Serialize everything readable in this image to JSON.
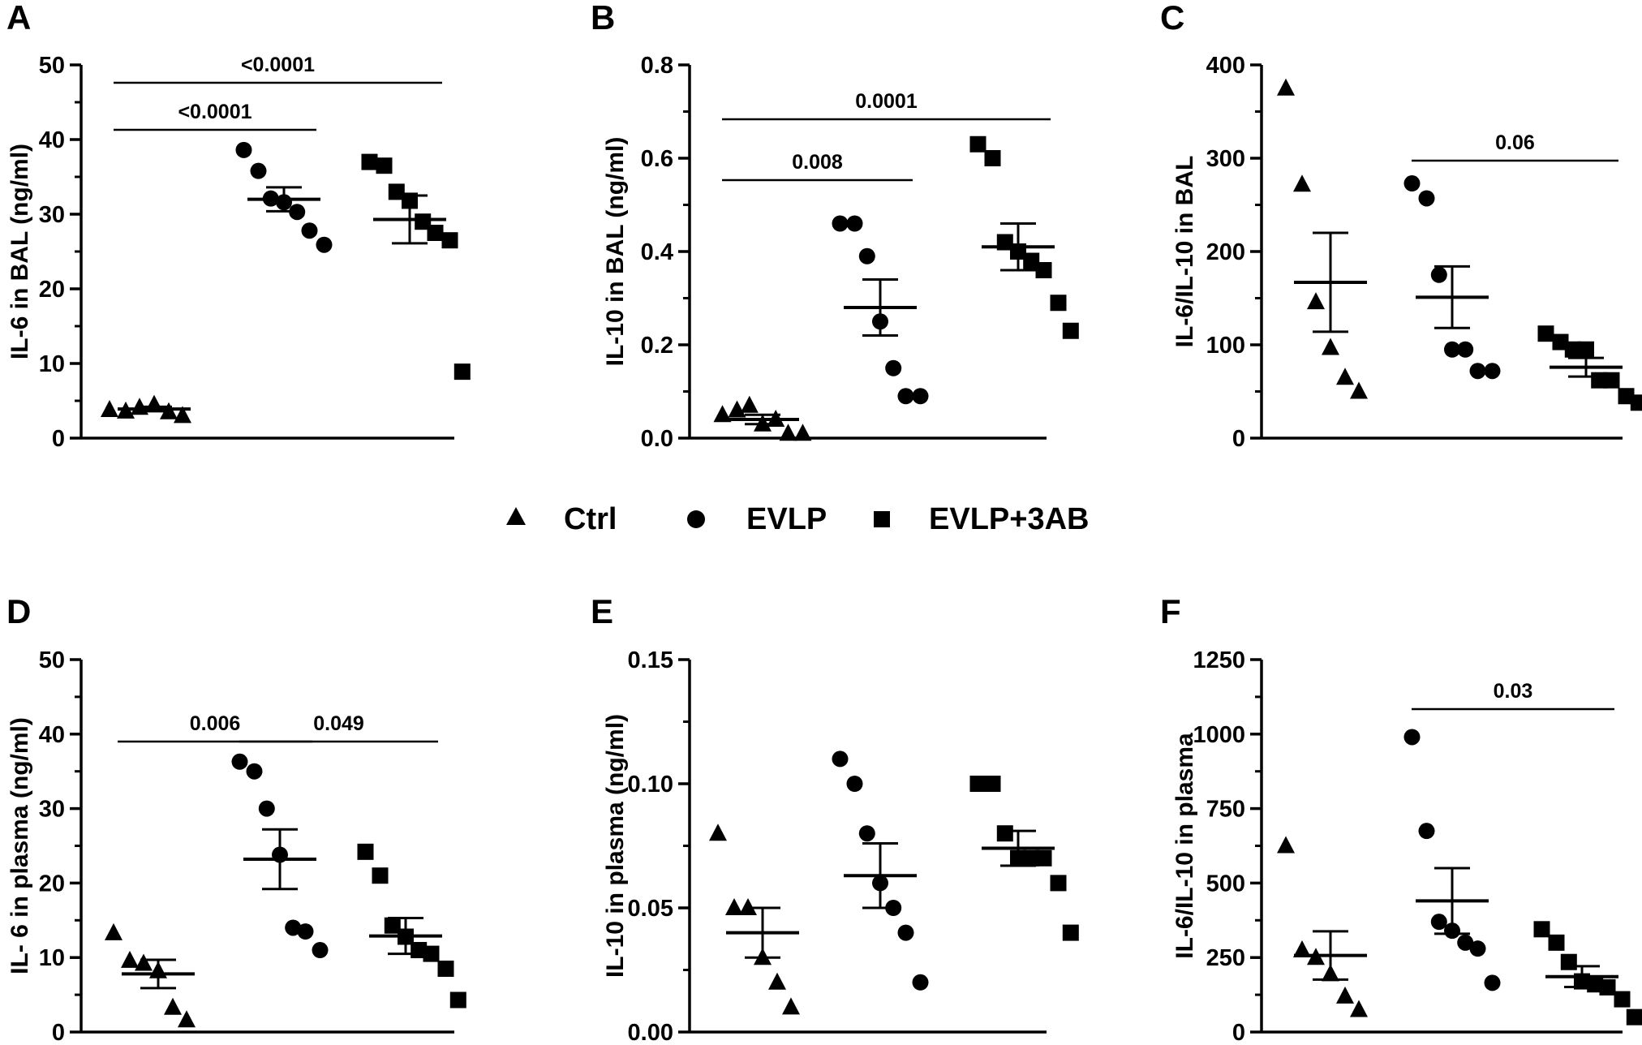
{
  "legend": [
    {
      "label": "Ctrl",
      "marker": "triangle"
    },
    {
      "label": "EVLP",
      "marker": "circle"
    },
    {
      "label": "EVLP+3AB",
      "marker": "square"
    }
  ],
  "chart_data": [
    {
      "panel": "A",
      "type": "scatter",
      "ylabel": "IL-6 in BAL (ng/ml)",
      "ylim": [
        0,
        50
      ],
      "yticks": [
        "0",
        "10",
        "20",
        "30",
        "40",
        "50"
      ],
      "groups": [
        {
          "name": "Ctrl",
          "marker": "triangle",
          "values": [
            3.8,
            3.6,
            4.1,
            4.5,
            3.5,
            3.0
          ],
          "mean": 3.9,
          "sem": 0.3
        },
        {
          "name": "EVLP",
          "marker": "circle",
          "values": [
            38.6,
            35.8,
            32.1,
            31.6,
            30.3,
            27.8,
            25.9
          ],
          "mean": 32.0,
          "sem": 1.6
        },
        {
          "name": "EVLP+3AB",
          "marker": "square",
          "values": [
            37.0,
            36.5,
            33.0,
            31.8,
            29.0,
            27.5,
            26.5,
            8.9
          ],
          "mean": 29.3,
          "sem": 3.2
        }
      ],
      "comparisons": [
        {
          "from": 0,
          "to": 1,
          "label": "<0.0001"
        },
        {
          "from": 0,
          "to": 2,
          "label": "<0.0001"
        }
      ]
    },
    {
      "panel": "B",
      "type": "scatter",
      "ylabel": "IL-10 in BAL (ng/ml)",
      "ylim": [
        0,
        0.8
      ],
      "yticks": [
        "0.0",
        "0.2",
        "0.4",
        "0.6",
        "0.8"
      ],
      "groups": [
        {
          "name": "Ctrl",
          "marker": "triangle",
          "values": [
            0.05,
            0.06,
            0.07,
            0.03,
            0.04,
            0.01,
            0.01
          ],
          "mean": 0.04,
          "sem": 0.01
        },
        {
          "name": "EVLP",
          "marker": "circle",
          "values": [
            0.46,
            0.46,
            0.39,
            0.25,
            0.15,
            0.09,
            0.09
          ],
          "mean": 0.28,
          "sem": 0.06
        },
        {
          "name": "EVLP+3AB",
          "marker": "square",
          "values": [
            0.63,
            0.6,
            0.42,
            0.4,
            0.38,
            0.36,
            0.29,
            0.23
          ],
          "mean": 0.41,
          "sem": 0.05
        }
      ],
      "comparisons": [
        {
          "from": 0,
          "to": 1,
          "label": "0.008"
        },
        {
          "from": 0,
          "to": 2,
          "label": "0.0001"
        }
      ]
    },
    {
      "panel": "C",
      "type": "scatter",
      "ylabel": "IL-6/IL-10 in BAL",
      "ylim": [
        0,
        400
      ],
      "yticks": [
        "0",
        "100",
        "200",
        "300",
        "400"
      ],
      "groups": [
        {
          "name": "Ctrl",
          "marker": "triangle",
          "values": [
            375,
            272,
            146,
            97,
            65,
            50
          ],
          "mean": 167,
          "sem": 53
        },
        {
          "name": "EVLP",
          "marker": "circle",
          "values": [
            273,
            257,
            175,
            95,
            95,
            72,
            72
          ],
          "mean": 151,
          "sem": 33
        },
        {
          "name": "EVLP+3AB",
          "marker": "square",
          "values": [
            112,
            103,
            95,
            95,
            62,
            62,
            45,
            38
          ],
          "mean": 76,
          "sem": 10
        }
      ],
      "comparisons": [
        {
          "from": 1,
          "to": 2,
          "label": "0.06"
        }
      ]
    },
    {
      "panel": "D",
      "type": "scatter",
      "ylabel": "IL- 6 in plasma (ng/ml)",
      "ylim": [
        0,
        50
      ],
      "yticks": [
        "0",
        "10",
        "20",
        "30",
        "40",
        "50"
      ],
      "groups": [
        {
          "name": "Ctrl",
          "marker": "triangle",
          "values": [
            13.3,
            9.6,
            9.2,
            8.2,
            3.3,
            1.6
          ],
          "mean": 7.8,
          "sem": 1.9
        },
        {
          "name": "EVLP",
          "marker": "circle",
          "values": [
            36.3,
            35.0,
            30.0,
            23.8,
            14.0,
            13.5,
            11.0
          ],
          "mean": 23.2,
          "sem": 4.0
        },
        {
          "name": "EVLP+3AB",
          "marker": "square",
          "values": [
            24.2,
            21.0,
            14.3,
            12.8,
            11.0,
            10.5,
            8.5,
            4.3
          ],
          "mean": 12.9,
          "sem": 2.4
        }
      ],
      "comparisons": [
        {
          "from": 0,
          "to": 1,
          "label": "0.006"
        },
        {
          "from": 1,
          "to": 2,
          "label": "0.049"
        }
      ]
    },
    {
      "panel": "E",
      "type": "scatter",
      "ylabel": "IL-10 in plasma (ng/ml)",
      "ylim": [
        0,
        0.15
      ],
      "yticks": [
        "0.00",
        "0.05",
        "0.10",
        "0.15"
      ],
      "groups": [
        {
          "name": "Ctrl",
          "marker": "triangle",
          "values": [
            0.08,
            0.05,
            0.05,
            0.03,
            0.02,
            0.01
          ],
          "mean": 0.04,
          "sem": 0.01
        },
        {
          "name": "EVLP",
          "marker": "circle",
          "values": [
            0.11,
            0.1,
            0.08,
            0.06,
            0.05,
            0.04,
            0.02
          ],
          "mean": 0.063,
          "sem": 0.013
        },
        {
          "name": "EVLP+3AB",
          "marker": "square",
          "values": [
            0.1,
            0.1,
            0.08,
            0.07,
            0.07,
            0.07,
            0.06,
            0.04
          ],
          "mean": 0.074,
          "sem": 0.007
        }
      ],
      "comparisons": []
    },
    {
      "panel": "F",
      "type": "scatter",
      "ylabel": "IL-6/IL-10 in plasma",
      "ylim": [
        0,
        1250
      ],
      "yticks": [
        "0",
        "250",
        "500",
        "750",
        "1000",
        "1250"
      ],
      "groups": [
        {
          "name": "Ctrl",
          "marker": "triangle",
          "values": [
            625,
            275,
            250,
            195,
            120,
            75
          ],
          "mean": 257,
          "sem": 81
        },
        {
          "name": "EVLP",
          "marker": "circle",
          "values": [
            990,
            675,
            370,
            340,
            300,
            280,
            165
          ],
          "mean": 440,
          "sem": 110
        },
        {
          "name": "EVLP+3AB",
          "marker": "square",
          "values": [
            345,
            300,
            235,
            170,
            160,
            150,
            110,
            50
          ],
          "mean": 186,
          "sem": 35
        }
      ],
      "comparisons": [
        {
          "from": 1,
          "to": 2,
          "label": "0.03"
        }
      ]
    }
  ]
}
